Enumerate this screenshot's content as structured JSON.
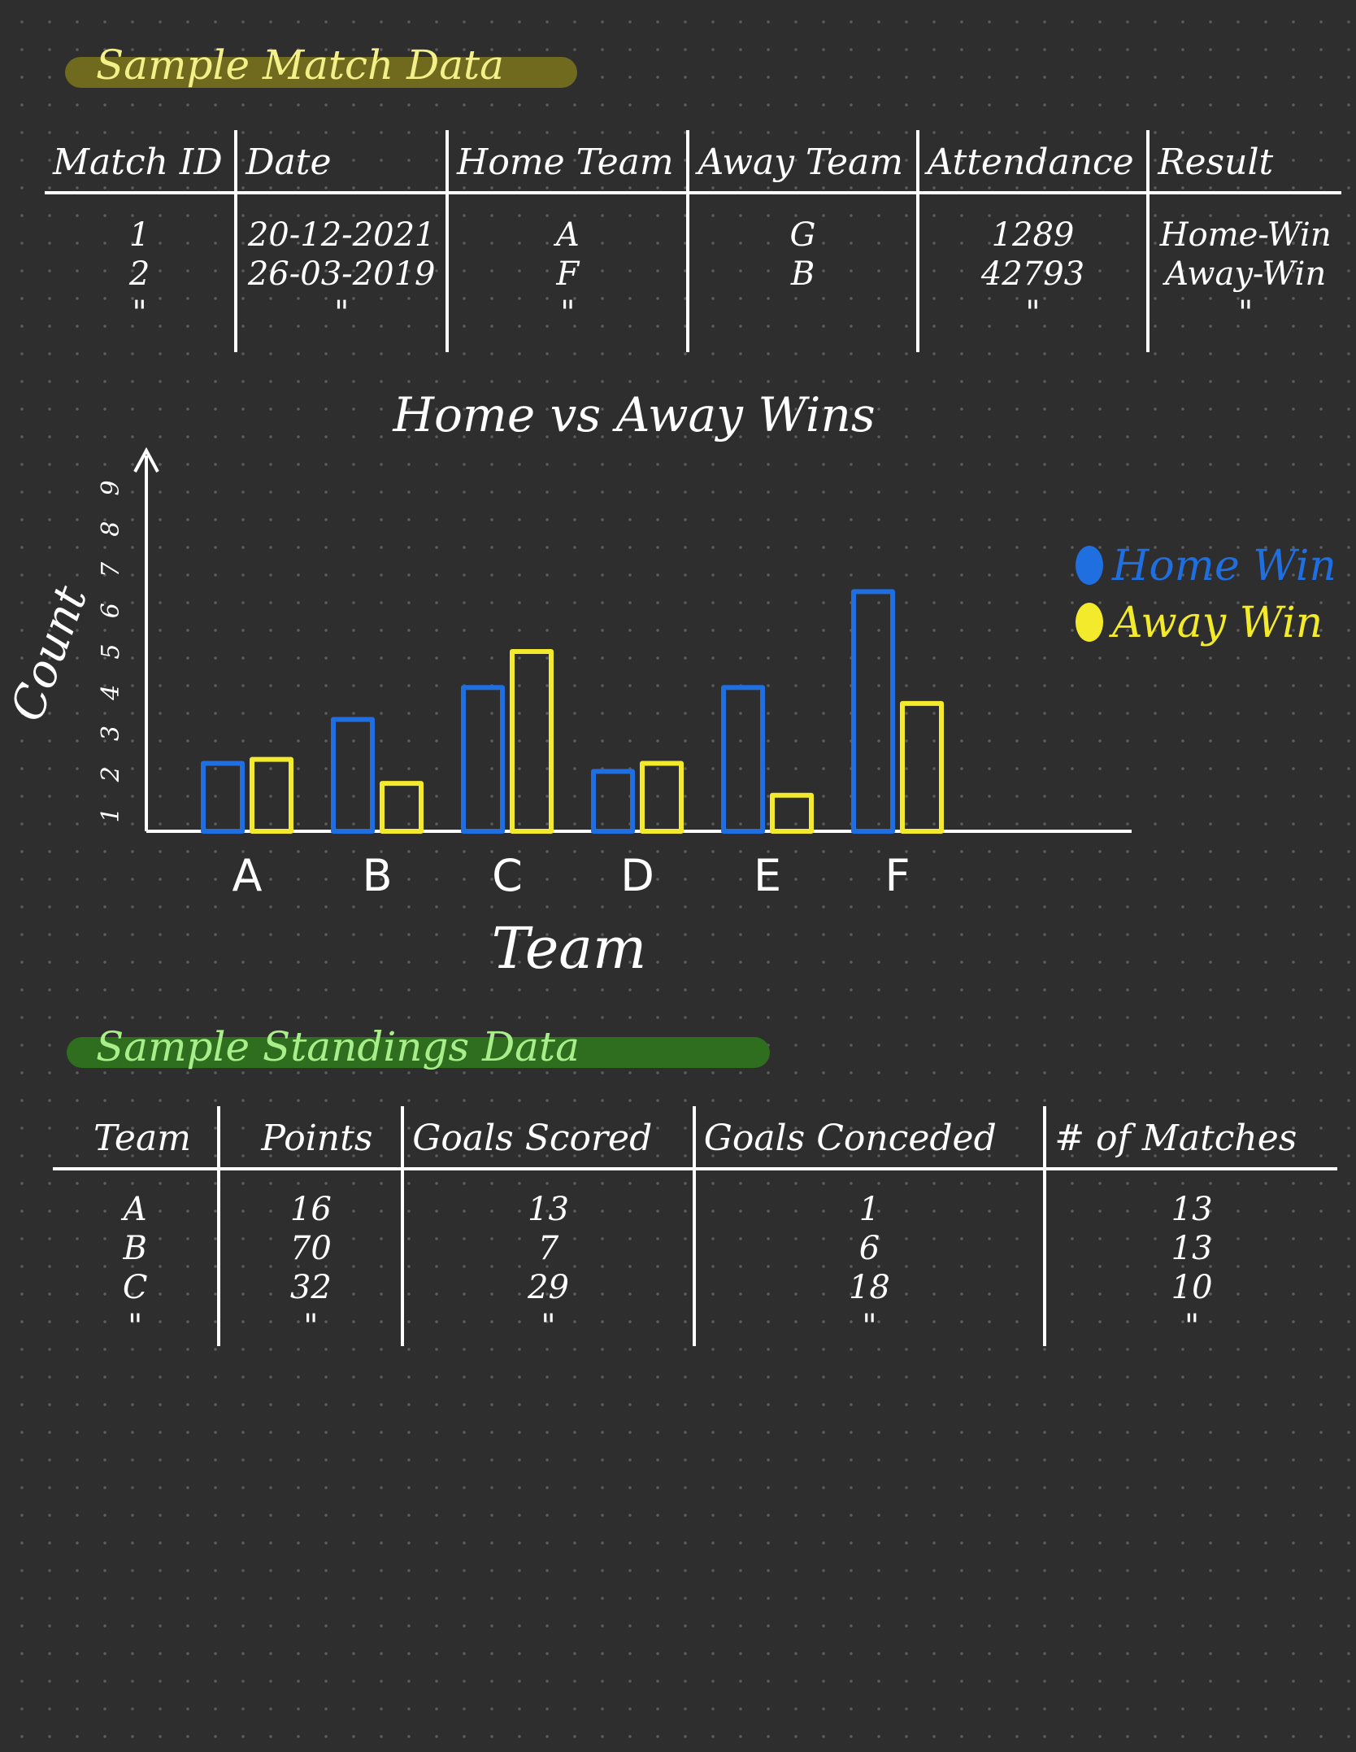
{
  "match_section": {
    "title": "Sample Match Data",
    "headers": [
      "Match ID",
      "Date",
      "Home Team",
      "Away Team",
      "Attendance",
      "Result"
    ],
    "rows": [
      [
        "1",
        "20-12-2021",
        "A",
        "G",
        "1289",
        "Home-Win"
      ],
      [
        "2",
        "26-03-2019",
        "F",
        "B",
        "42793",
        "Away-Win"
      ],
      [
        "\"",
        "\"",
        "\"",
        "",
        "\"",
        "\""
      ]
    ]
  },
  "standings_section": {
    "title": "Sample Standings Data",
    "headers": [
      "Team",
      "Points",
      "Goals Scored",
      "Goals Conceded",
      "# of Matches"
    ],
    "rows": [
      [
        "A",
        "16",
        "13",
        "1",
        "13"
      ],
      [
        "B",
        "70",
        "7",
        "6",
        "13"
      ],
      [
        "C",
        "32",
        "29",
        "18",
        "10"
      ],
      [
        "\"",
        "\"",
        "\"",
        "\"",
        "\""
      ]
    ]
  },
  "chart_data": {
    "type": "bar",
    "title": "Home vs Away Wins",
    "xlabel": "Team",
    "ylabel": "Count",
    "categories": [
      "A",
      "B",
      "C",
      "D",
      "E",
      "F"
    ],
    "series": [
      {
        "name": "Home Win",
        "color": "#1f6fe0",
        "values": [
          1.7,
          2.8,
          3.6,
          1.5,
          3.6,
          6.0
        ]
      },
      {
        "name": "Away Win",
        "color": "#f2ea2a",
        "values": [
          1.8,
          1.2,
          4.5,
          1.7,
          0.9,
          3.2
        ]
      }
    ],
    "yticks": [
      "1",
      "2",
      "3",
      "4",
      "5",
      "6",
      "7",
      "8",
      "9"
    ],
    "ylim": [
      0,
      9
    ],
    "legend_position": "top-right",
    "grid": false
  }
}
